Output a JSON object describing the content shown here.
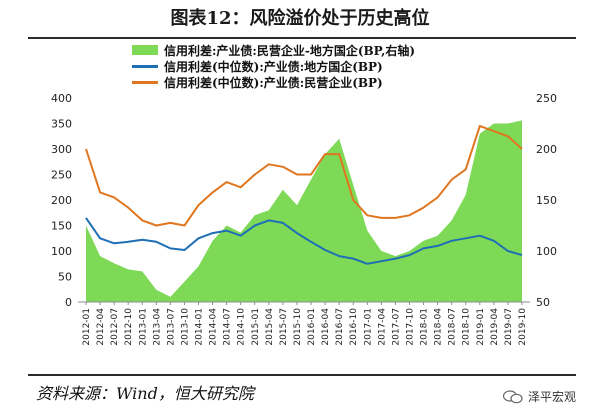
{
  "title": "图表12：风险溢价处于历史高位",
  "source": "资料来源：Wind，恒大研究院",
  "brand": {
    "name": "泽平宏观",
    "icon": "wechat-icon"
  },
  "colors": {
    "area": "#7ed957",
    "blue": "#1f6fb5",
    "orange": "#e0761f"
  },
  "chart_data": {
    "type": "line",
    "title": "",
    "xlabel": "",
    "ylabel": "",
    "ylim": [
      0,
      400
    ],
    "y2lim": [
      50,
      250
    ],
    "yticks": [
      0,
      50,
      100,
      150,
      200,
      250,
      300,
      350,
      400
    ],
    "y2ticks": [
      50,
      100,
      150,
      200,
      250
    ],
    "grid": false,
    "legend_position": "top",
    "categories": [
      "2012-01",
      "2012-04",
      "2012-07",
      "2012-10",
      "2013-01",
      "2013-04",
      "2013-07",
      "2013-10",
      "2014-01",
      "2014-04",
      "2014-07",
      "2014-10",
      "2015-01",
      "2015-04",
      "2015-07",
      "2015-10",
      "2016-01",
      "2016-04",
      "2016-07",
      "2016-10",
      "2017-01",
      "2017-04",
      "2017-07",
      "2017-10",
      "2018-01",
      "2018-04",
      "2018-07",
      "2018-10",
      "2019-01",
      "2019-04",
      "2019-07",
      "2019-10"
    ],
    "series": [
      {
        "name": "信用利差:产业债:民营企业-地方国企(BP,右轴)",
        "type": "area",
        "axis": "right",
        "values": [
          125,
          95,
          88,
          82,
          80,
          62,
          55,
          70,
          85,
          110,
          125,
          118,
          135,
          140,
          160,
          145,
          170,
          195,
          210,
          165,
          120,
          100,
          95,
          100,
          110,
          115,
          130,
          155,
          215,
          225,
          225,
          228
        ]
      },
      {
        "name": "信用利差(中位数):产业债:地方国企(BP)",
        "type": "line",
        "axis": "left",
        "values": [
          165,
          125,
          115,
          118,
          122,
          118,
          105,
          102,
          125,
          135,
          140,
          130,
          150,
          160,
          155,
          135,
          118,
          102,
          90,
          85,
          75,
          80,
          85,
          92,
          105,
          110,
          120,
          125,
          130,
          120,
          100,
          92
        ]
      },
      {
        "name": "信用利差(中位数):产业债:民营企业(BP)",
        "type": "line",
        "axis": "left",
        "values": [
          300,
          215,
          205,
          185,
          160,
          150,
          155,
          150,
          190,
          215,
          235,
          225,
          250,
          270,
          265,
          250,
          250,
          290,
          290,
          200,
          170,
          165,
          165,
          170,
          185,
          205,
          240,
          260,
          345,
          335,
          325,
          300
        ]
      }
    ]
  }
}
